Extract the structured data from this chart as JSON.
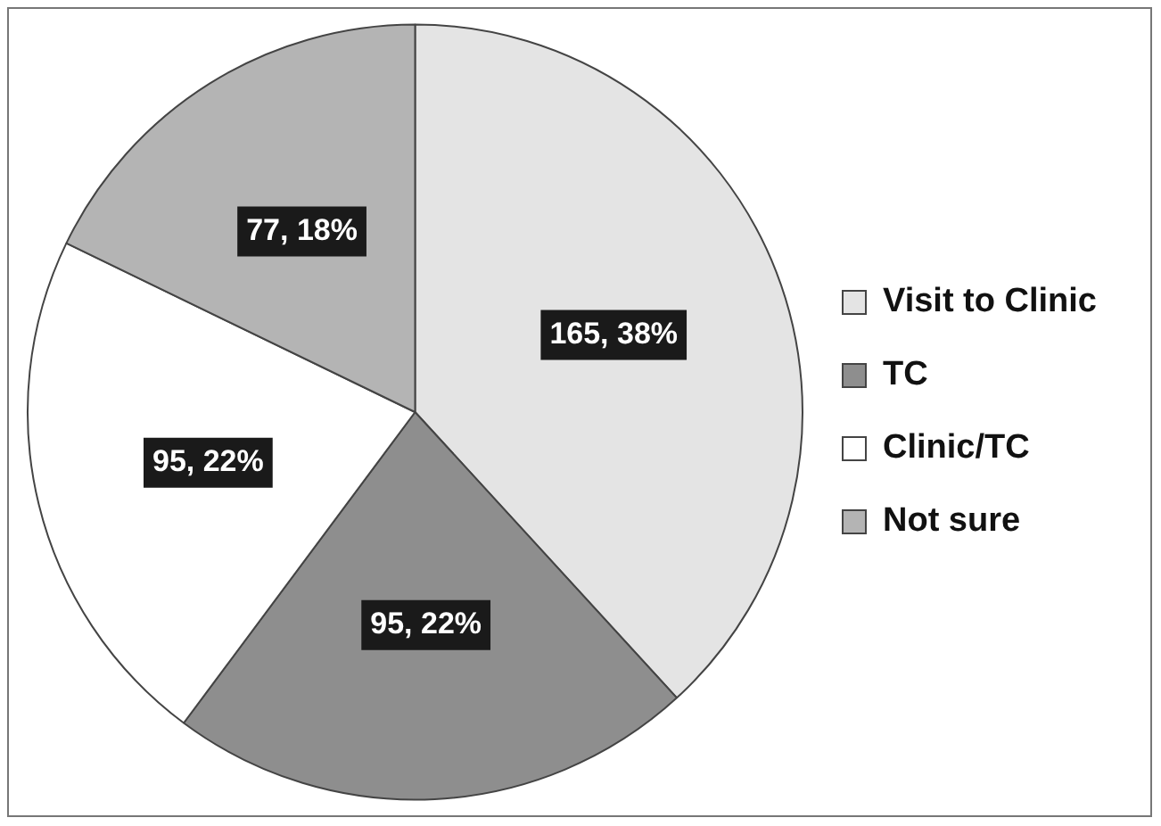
{
  "chart_data": {
    "type": "pie",
    "categories": [
      "Visit to Clinic",
      "TC",
      "Clinic/TC",
      "Not sure"
    ],
    "values": [
      165,
      95,
      95,
      77
    ],
    "colors": [
      "#e4e4e4",
      "#8e8e8e",
      "#ffffff",
      "#b4b4b4"
    ],
    "value_labels": [
      "165, 38%",
      "95, 22%",
      "95, 22%",
      "77, 18%"
    ],
    "legend": "right"
  }
}
